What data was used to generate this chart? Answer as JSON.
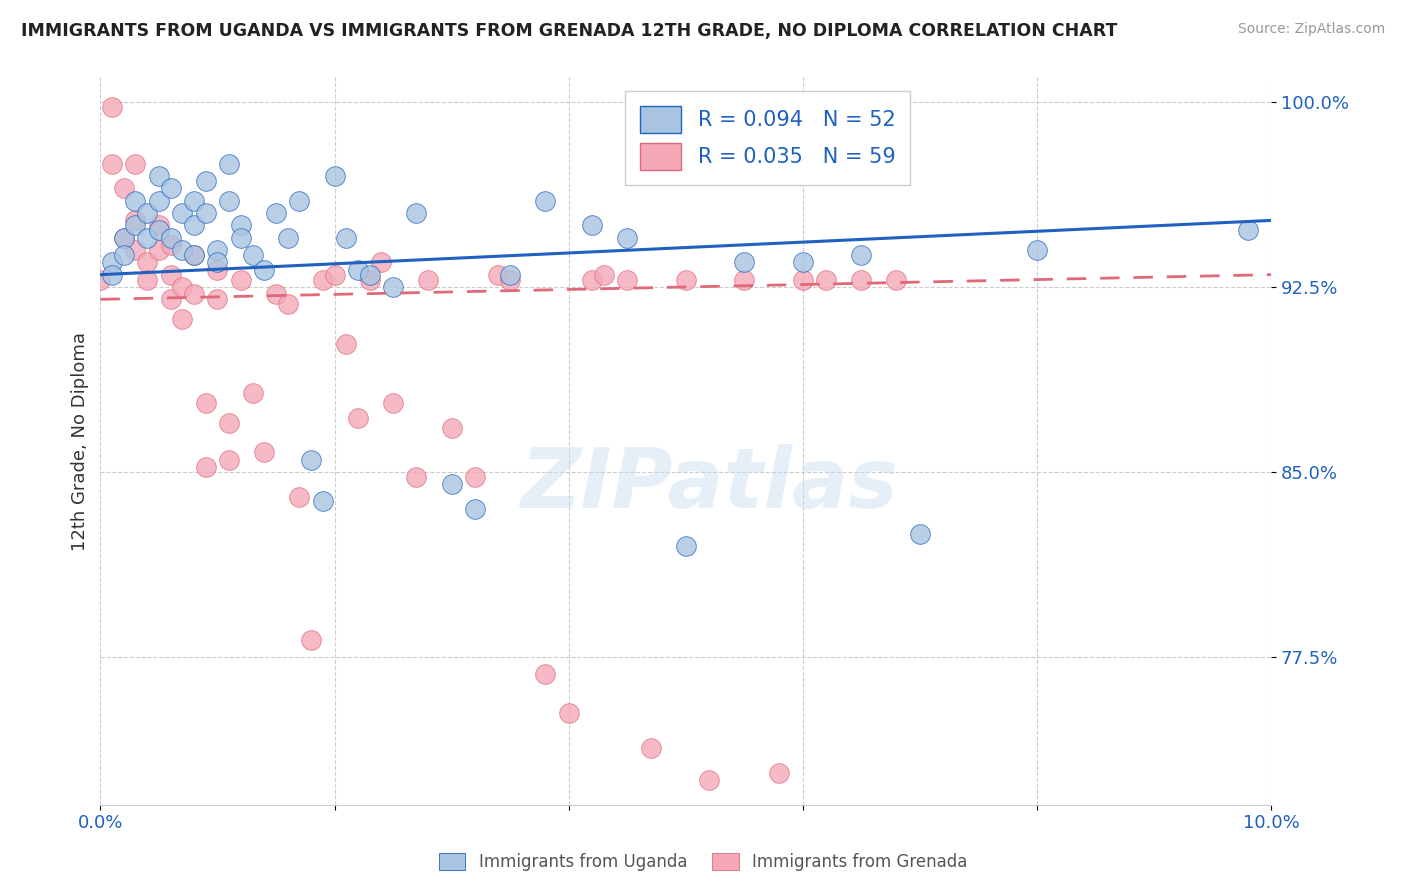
{
  "title": "IMMIGRANTS FROM UGANDA VS IMMIGRANTS FROM GRENADA 12TH GRADE, NO DIPLOMA CORRELATION CHART",
  "source": "Source: ZipAtlas.com",
  "ylabel_label": "12th Grade, No Diploma",
  "x_min": 0.0,
  "x_max": 0.1,
  "y_min": 0.715,
  "y_max": 1.01,
  "y_ticks": [
    0.775,
    0.85,
    0.925,
    1.0
  ],
  "y_tick_labels": [
    "77.5%",
    "85.0%",
    "92.5%",
    "100.0%"
  ],
  "uganda_R": 0.094,
  "uganda_N": 52,
  "grenada_R": 0.035,
  "grenada_N": 59,
  "uganda_color": "#a8c4e0",
  "grenada_color": "#f4a8b8",
  "uganda_line_color": "#2060c0",
  "grenada_line_color": "#e06878",
  "legend_label_uganda": "Immigrants from Uganda",
  "legend_label_grenada": "Immigrants from Grenada",
  "watermark": "ZIPatlas",
  "uganda_x": [
    0.001,
    0.001,
    0.002,
    0.002,
    0.003,
    0.003,
    0.004,
    0.004,
    0.005,
    0.005,
    0.005,
    0.006,
    0.006,
    0.007,
    0.007,
    0.008,
    0.008,
    0.008,
    0.009,
    0.009,
    0.01,
    0.01,
    0.011,
    0.011,
    0.012,
    0.012,
    0.013,
    0.014,
    0.015,
    0.016,
    0.017,
    0.018,
    0.019,
    0.02,
    0.021,
    0.022,
    0.023,
    0.025,
    0.027,
    0.03,
    0.032,
    0.035,
    0.038,
    0.042,
    0.045,
    0.05,
    0.055,
    0.06,
    0.065,
    0.07,
    0.08,
    0.098
  ],
  "uganda_y": [
    0.935,
    0.93,
    0.945,
    0.938,
    0.96,
    0.95,
    0.955,
    0.945,
    0.97,
    0.96,
    0.948,
    0.965,
    0.945,
    0.955,
    0.94,
    0.96,
    0.95,
    0.938,
    0.968,
    0.955,
    0.94,
    0.935,
    0.975,
    0.96,
    0.95,
    0.945,
    0.938,
    0.932,
    0.955,
    0.945,
    0.96,
    0.855,
    0.838,
    0.97,
    0.945,
    0.932,
    0.93,
    0.925,
    0.955,
    0.845,
    0.835,
    0.93,
    0.96,
    0.95,
    0.945,
    0.82,
    0.935,
    0.935,
    0.938,
    0.825,
    0.94,
    0.948
  ],
  "grenada_x": [
    0.0,
    0.001,
    0.001,
    0.002,
    0.002,
    0.003,
    0.003,
    0.003,
    0.004,
    0.004,
    0.005,
    0.005,
    0.006,
    0.006,
    0.006,
    0.007,
    0.007,
    0.008,
    0.008,
    0.009,
    0.009,
    0.01,
    0.01,
    0.011,
    0.011,
    0.012,
    0.013,
    0.014,
    0.015,
    0.016,
    0.017,
    0.018,
    0.019,
    0.02,
    0.021,
    0.022,
    0.023,
    0.024,
    0.025,
    0.027,
    0.028,
    0.03,
    0.032,
    0.034,
    0.035,
    0.038,
    0.04,
    0.042,
    0.043,
    0.045,
    0.047,
    0.05,
    0.052,
    0.055,
    0.058,
    0.06,
    0.062,
    0.065,
    0.068
  ],
  "grenada_y": [
    0.928,
    0.998,
    0.975,
    0.965,
    0.945,
    0.975,
    0.952,
    0.94,
    0.935,
    0.928,
    0.95,
    0.94,
    0.942,
    0.93,
    0.92,
    0.925,
    0.912,
    0.938,
    0.922,
    0.878,
    0.852,
    0.932,
    0.92,
    0.87,
    0.855,
    0.928,
    0.882,
    0.858,
    0.922,
    0.918,
    0.84,
    0.782,
    0.928,
    0.93,
    0.902,
    0.872,
    0.928,
    0.935,
    0.878,
    0.848,
    0.928,
    0.868,
    0.848,
    0.93,
    0.928,
    0.768,
    0.752,
    0.928,
    0.93,
    0.928,
    0.738,
    0.928,
    0.725,
    0.928,
    0.728,
    0.928,
    0.928,
    0.928,
    0.928
  ],
  "uganda_trend_x0": 0.0,
  "uganda_trend_y0": 0.93,
  "uganda_trend_x1": 0.1,
  "uganda_trend_y1": 0.952,
  "grenada_trend_x0": 0.0,
  "grenada_trend_y0": 0.92,
  "grenada_trend_x1": 0.1,
  "grenada_trend_y1": 0.93
}
